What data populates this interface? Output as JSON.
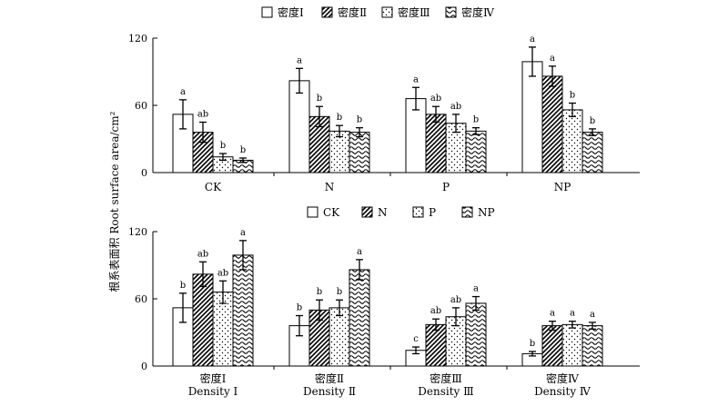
{
  "figure": {
    "ylabel": "根系表面积 Root surface area/cm²"
  },
  "patterns": {
    "P1": "open",
    "P2": "diagonal-stripe",
    "P3": "dots",
    "P4": "waves"
  },
  "chart_data": [
    {
      "type": "bar",
      "title": "",
      "xlabel": "",
      "ylabel": "根系表面积 Root surface area/cm²",
      "ylim": [
        0,
        120
      ],
      "yticks": [
        0,
        60,
        120
      ],
      "legend_position": "top-center",
      "categories": [
        [
          "CK"
        ],
        [
          "N"
        ],
        [
          "P"
        ],
        [
          "NP"
        ]
      ],
      "series": [
        {
          "name": "密度Ⅰ",
          "pattern": "P1",
          "values": [
            52,
            82,
            66,
            99
          ],
          "errors": [
            13,
            11,
            10,
            13
          ],
          "letters": [
            "a",
            "a",
            "a",
            "a"
          ]
        },
        {
          "name": "密度Ⅱ",
          "pattern": "P2",
          "values": [
            36,
            50,
            52,
            86
          ],
          "errors": [
            9,
            9,
            7,
            9
          ],
          "letters": [
            "ab",
            "b",
            "ab",
            "a"
          ]
        },
        {
          "name": "密度Ⅲ",
          "pattern": "P3",
          "values": [
            14,
            37,
            44,
            56
          ],
          "errors": [
            3,
            5,
            8,
            6
          ],
          "letters": [
            "b",
            "b",
            "ab",
            "b"
          ]
        },
        {
          "name": "密度Ⅳ",
          "pattern": "P4",
          "values": [
            11,
            36,
            37,
            36
          ],
          "errors": [
            2,
            4,
            3,
            3
          ],
          "letters": [
            "b",
            "b",
            "b",
            "b"
          ]
        }
      ]
    },
    {
      "type": "bar",
      "title": "",
      "xlabel": "",
      "ylabel": "根系表面积 Root surface area/cm²",
      "ylim": [
        0,
        120
      ],
      "yticks": [
        0,
        60,
        120
      ],
      "legend_position": "top-center",
      "categories": [
        [
          "密度Ⅰ",
          "Density Ⅰ"
        ],
        [
          "密度Ⅱ",
          "Density Ⅱ"
        ],
        [
          "密度Ⅲ",
          "Density Ⅲ"
        ],
        [
          "密度Ⅳ",
          "Density Ⅳ"
        ]
      ],
      "series": [
        {
          "name": "CK",
          "pattern": "P1",
          "values": [
            52,
            36,
            14,
            11
          ],
          "errors": [
            13,
            9,
            3,
            2
          ],
          "letters": [
            "b",
            "b",
            "c",
            "b"
          ]
        },
        {
          "name": "N",
          "pattern": "P2",
          "values": [
            82,
            50,
            37,
            36
          ],
          "errors": [
            11,
            9,
            5,
            4
          ],
          "letters": [
            "ab",
            "b",
            "ab",
            "a"
          ]
        },
        {
          "name": "P",
          "pattern": "P3",
          "values": [
            66,
            52,
            44,
            37
          ],
          "errors": [
            10,
            7,
            8,
            3
          ],
          "letters": [
            "ab",
            "b",
            "ab",
            "a"
          ]
        },
        {
          "name": "NP",
          "pattern": "P4",
          "values": [
            99,
            86,
            56,
            36
          ],
          "errors": [
            13,
            9,
            6,
            3
          ],
          "letters": [
            "a",
            "a",
            "a",
            "a"
          ]
        }
      ]
    }
  ]
}
